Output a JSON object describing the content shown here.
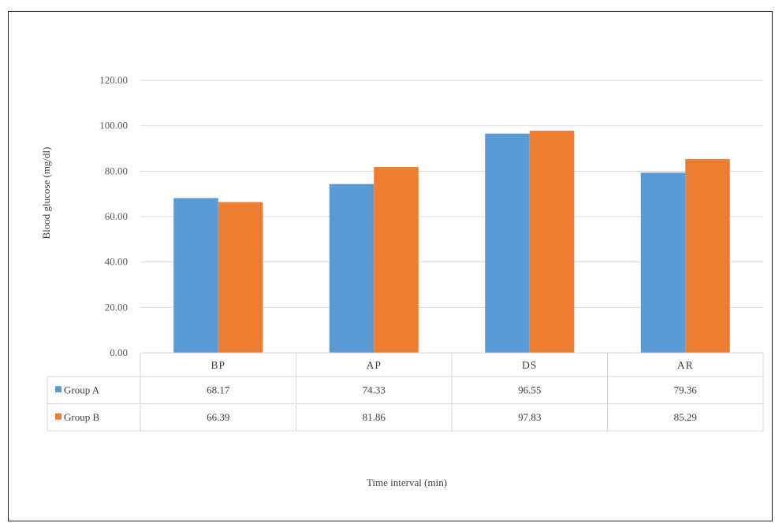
{
  "chart_data": {
    "type": "bar",
    "categories": [
      "BP",
      "AP",
      "DS",
      "AR"
    ],
    "series": [
      {
        "name": "Group A",
        "values": [
          68.17,
          74.33,
          96.55,
          79.36
        ],
        "color": "#5b9bd5",
        "labels": [
          "68.17",
          "74.33",
          "96.55",
          "79.36"
        ]
      },
      {
        "name": "Group B",
        "values": [
          66.39,
          81.86,
          97.83,
          85.29
        ],
        "color": "#ed7d31",
        "labels": [
          "66.39",
          "81.86",
          "97.83",
          "85.29"
        ]
      }
    ],
    "ylim": [
      0,
      120
    ],
    "yticks": [
      "0.00",
      "20.00",
      "40.00",
      "60.00",
      "80.00",
      "100.00",
      "120.00"
    ],
    "title": "",
    "xlabel": "Time interval (min)",
    "ylabel": "Blood glucose (mg/dl)",
    "grid": true,
    "legend": "data-table"
  }
}
